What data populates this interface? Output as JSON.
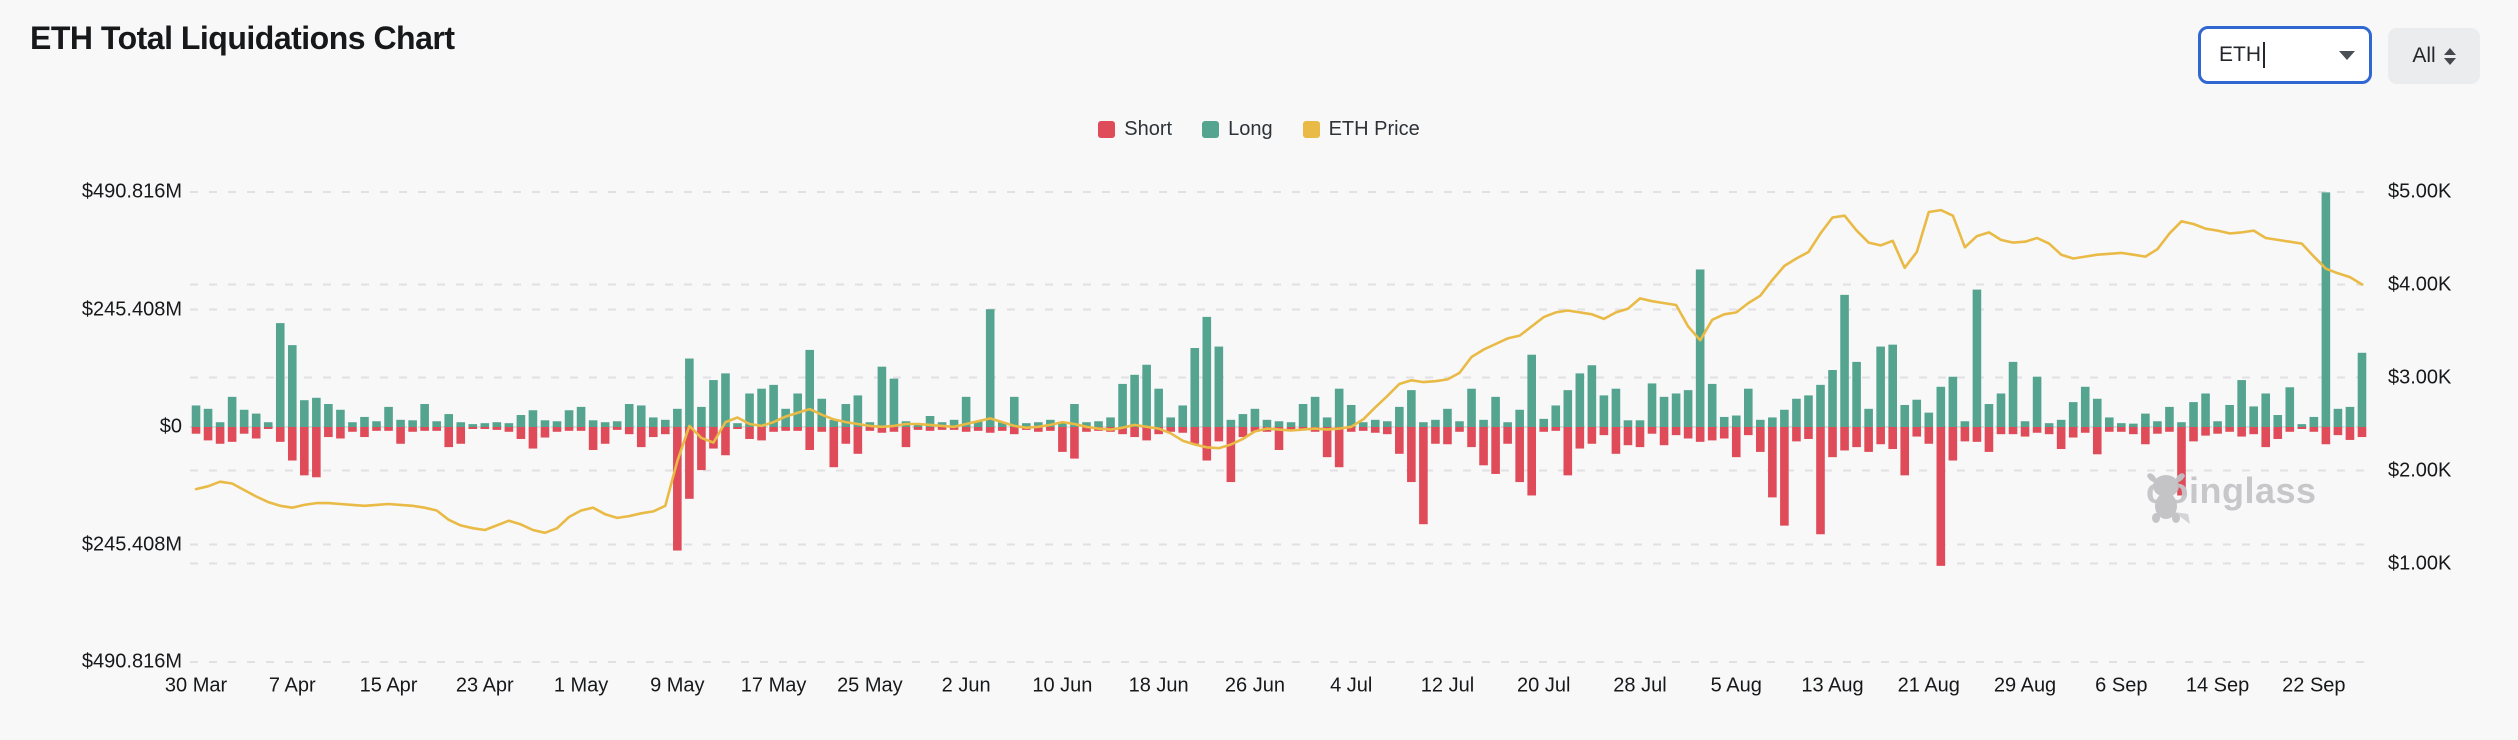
{
  "page": {
    "title": "ETH Total Liquidations Chart"
  },
  "controls": {
    "symbol_combobox": {
      "value": "ETH",
      "state": "focused",
      "border_color": "#3067d1"
    },
    "range_select": {
      "value": "All"
    }
  },
  "legend": [
    {
      "label": "Short",
      "color": "#df4b58"
    },
    {
      "label": "Long",
      "color": "#55a490"
    },
    {
      "label": "ETH Price",
      "color": "#e9ba45"
    }
  ],
  "watermark": {
    "text": "coinglass",
    "icon": "coinglass-bull-icon",
    "color": "#c5c5c8"
  },
  "chart_data": {
    "type": "bar",
    "subtype": "diverging-bars-with-line-overlay",
    "title": "ETH Total Liquidations Chart",
    "first_date": "30 Mar",
    "num_days": 181,
    "x_tick_step_days": 8,
    "x_tick_labels": [
      "30 Mar",
      "7 Apr",
      "15 Apr",
      "23 Apr",
      "1 May",
      "9 May",
      "17 May",
      "25 May",
      "2 Jun",
      "10 Jun",
      "18 Jun",
      "26 Jun",
      "4 Jul",
      "12 Jul",
      "20 Jul",
      "28 Jul",
      "5 Aug",
      "13 Aug",
      "21 Aug",
      "29 Aug",
      "6 Sep",
      "14 Sep",
      "22 Sep"
    ],
    "left_axis": {
      "labels": [
        "$490.816M",
        "$245.408M",
        "$0",
        "$245.408M",
        "$490.816M"
      ],
      "tick_values_m": [
        490.816,
        245.408,
        0,
        -245.408,
        -490.816
      ],
      "unit": "USD millions",
      "note": "long liquidations plotted up, short liquidations plotted down"
    },
    "right_axis": {
      "labels": [
        "$5.00K",
        "$4.00K",
        "$3.00K",
        "$2.00K",
        "$1.00K"
      ],
      "tick_values_usd": [
        5000,
        4000,
        3000,
        2000,
        1000
      ],
      "unit": "USD (ETH price)"
    },
    "grid": "dashed horizontal gridlines for both axes",
    "legend_position": "top-center",
    "series": [
      {
        "name": "Long",
        "color": "#55a490",
        "unit": "USD millions (plotted upward)",
        "values": [
          45,
          38,
          10,
          63,
          36,
          28,
          10,
          217,
          171,
          56,
          61,
          48,
          36,
          10,
          21,
          12,
          42,
          15,
          14,
          48,
          12,
          27,
          10,
          6,
          8,
          10,
          8,
          25,
          35,
          14,
          12,
          35,
          42,
          14,
          10,
          12,
          48,
          45,
          20,
          15,
          38,
          143,
          42,
          98,
          112,
          8,
          70,
          80,
          88,
          38,
          70,
          161,
          59,
          15,
          48,
          66,
          10,
          126,
          101,
          12,
          8,
          23,
          10,
          15,
          63,
          12,
          246,
          10,
          63,
          8,
          10,
          15,
          8,
          48,
          10,
          12,
          20,
          90,
          109,
          130,
          80,
          20,
          45,
          165,
          230,
          168,
          15,
          27,
          38,
          15,
          12,
          10,
          48,
          63,
          20,
          80,
          46,
          10,
          15,
          12,
          42,
          77,
          10,
          15,
          38,
          12,
          80,
          15,
          63,
          10,
          36,
          151,
          17,
          45,
          77,
          112,
          129,
          66,
          80,
          14,
          14,
          91,
          63,
          70,
          77,
          329,
          90,
          21,
          24,
          80,
          15,
          20,
          36,
          59,
          66,
          88,
          119,
          276,
          136,
          38,
          168,
          172,
          46,
          57,
          30,
          84,
          105,
          12,
          287,
          48,
          70,
          136,
          12,
          105,
          8,
          15,
          52,
          84,
          59,
          20,
          8,
          7,
          28,
          12,
          42,
          10,
          52,
          70,
          12,
          46,
          98,
          43,
          70,
          25,
          83,
          6,
          21,
          490,
          38,
          42,
          155
        ]
      },
      {
        "name": "Short",
        "color": "#df4b58",
        "unit": "USD millions (plotted downward)",
        "values": [
          14,
          28,
          35,
          31,
          14,
          24,
          3,
          31,
          70,
          101,
          105,
          21,
          24,
          10,
          21,
          8,
          8,
          35,
          10,
          8,
          8,
          42,
          35,
          4,
          4,
          6,
          10,
          25,
          45,
          22,
          10,
          8,
          8,
          48,
          35,
          6,
          15,
          42,
          21,
          15,
          258,
          150,
          90,
          45,
          59,
          4,
          25,
          28,
          10,
          8,
          8,
          48,
          10,
          84,
          35,
          56,
          8,
          12,
          10,
          42,
          6,
          8,
          6,
          6,
          10,
          8,
          12,
          8,
          15,
          6,
          10,
          8,
          52,
          66,
          10,
          8,
          10,
          15,
          21,
          28,
          15,
          10,
          12,
          35,
          70,
          30,
          115,
          21,
          10,
          10,
          48,
          8,
          6,
          10,
          63,
          84,
          10,
          8,
          12,
          15,
          56,
          115,
          203,
          35,
          36,
          10,
          42,
          80,
          98,
          35,
          115,
          143,
          10,
          8,
          101,
          45,
          35,
          17,
          56,
          38,
          42,
          14,
          38,
          17,
          24,
          31,
          28,
          24,
          63,
          17,
          52,
          147,
          206,
          30,
          25,
          224,
          63,
          49,
          42,
          52,
          36,
          46,
          101,
          20,
          35,
          290,
          70,
          30,
          31,
          52,
          15,
          15,
          20,
          12,
          15,
          46,
          22,
          12,
          57,
          10,
          10,
          15,
          36,
          14,
          10,
          143,
          30,
          18,
          14,
          10,
          20,
          15,
          42,
          25,
          10,
          4,
          10,
          36,
          17,
          27,
          21
        ]
      },
      {
        "name": "ETH Price",
        "color": "#e9ba45",
        "unit": "USD thousands",
        "values": [
          1.8,
          1.83,
          1.88,
          1.86,
          1.79,
          1.72,
          1.66,
          1.62,
          1.6,
          1.63,
          1.65,
          1.65,
          1.64,
          1.63,
          1.62,
          1.63,
          1.64,
          1.63,
          1.62,
          1.6,
          1.57,
          1.47,
          1.41,
          1.38,
          1.36,
          1.41,
          1.46,
          1.42,
          1.36,
          1.33,
          1.38,
          1.5,
          1.57,
          1.6,
          1.53,
          1.49,
          1.51,
          1.54,
          1.56,
          1.62,
          2.1,
          2.48,
          2.35,
          2.3,
          2.52,
          2.57,
          2.5,
          2.48,
          2.52,
          2.58,
          2.62,
          2.66,
          2.6,
          2.55,
          2.52,
          2.5,
          2.48,
          2.47,
          2.48,
          2.5,
          2.5,
          2.49,
          2.48,
          2.47,
          2.5,
          2.53,
          2.56,
          2.52,
          2.48,
          2.46,
          2.47,
          2.49,
          2.52,
          2.5,
          2.47,
          2.45,
          2.44,
          2.46,
          2.49,
          2.47,
          2.45,
          2.4,
          2.32,
          2.28,
          2.25,
          2.24,
          2.28,
          2.34,
          2.42,
          2.45,
          2.44,
          2.43,
          2.44,
          2.45,
          2.44,
          2.45,
          2.47,
          2.55,
          2.68,
          2.8,
          2.93,
          2.97,
          2.95,
          2.96,
          2.98,
          3.05,
          3.22,
          3.3,
          3.36,
          3.42,
          3.45,
          3.55,
          3.65,
          3.7,
          3.72,
          3.7,
          3.68,
          3.63,
          3.7,
          3.74,
          3.85,
          3.82,
          3.8,
          3.78,
          3.55,
          3.4,
          3.62,
          3.68,
          3.7,
          3.8,
          3.88,
          4.05,
          4.2,
          4.28,
          4.35,
          4.55,
          4.72,
          4.74,
          4.58,
          4.45,
          4.42,
          4.47,
          4.18,
          4.35,
          4.78,
          4.8,
          4.74,
          4.4,
          4.52,
          4.56,
          4.48,
          4.45,
          4.46,
          4.5,
          4.44,
          4.32,
          4.28,
          4.3,
          4.32,
          4.33,
          4.34,
          4.32,
          4.3,
          4.38,
          4.55,
          4.68,
          4.65,
          4.6,
          4.58,
          4.55,
          4.56,
          4.58,
          4.5,
          4.48,
          4.46,
          4.44,
          4.3,
          4.17,
          4.12,
          4.08,
          4.0
        ]
      }
    ]
  }
}
